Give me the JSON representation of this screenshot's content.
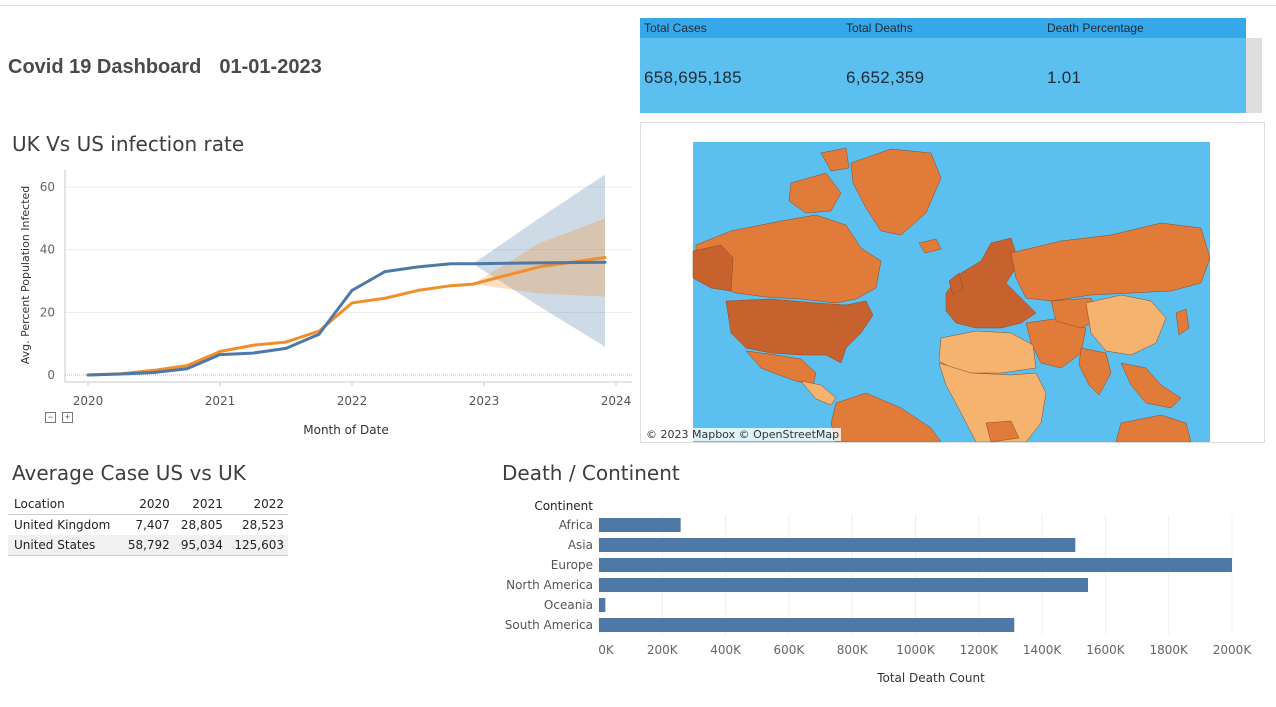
{
  "header": {
    "title": "Covid 19 Dashboard",
    "date": "01-01-2023"
  },
  "kpis": {
    "labels": [
      "Total Cases",
      "Total Deaths",
      "Death Percentage"
    ],
    "values": [
      "658,695,185",
      "6,652,359",
      "1.01"
    ],
    "header_color": "#36a8ea",
    "body_color": "#5bc0f0"
  },
  "infection_chart": {
    "title": "UK Vs US infection rate",
    "zoom_out_symbol": "−",
    "zoom_in_symbol": "+"
  },
  "map": {
    "credit": "© 2023 Mapbox  © OpenStreetMap",
    "ocean_color": "#5bc0ef",
    "land_colors": [
      "#e07b39",
      "#c7622e",
      "#f4b470"
    ]
  },
  "avg_table": {
    "title": "Average Case US vs UK",
    "columns": [
      "Location",
      "2020",
      "2021",
      "2022"
    ],
    "rows": [
      [
        "United Kingdom",
        "7,407",
        "28,805",
        "28,523"
      ],
      [
        "United States",
        "58,792",
        "95,034",
        "125,603"
      ]
    ]
  },
  "death_chart_title": "Death / Continent",
  "chart_data": [
    {
      "type": "line",
      "xlabel": "Month of Date",
      "ylabel": "Avg. Percent Population Infected",
      "x_ticks": [
        "2020",
        "2021",
        "2022",
        "2023",
        "2024"
      ],
      "y_ticks": [
        0,
        20,
        40,
        60
      ],
      "ylim": [
        0,
        60
      ],
      "xlim": [
        "2020-01",
        "2024-01"
      ],
      "grid": true,
      "colors": {
        "uk": "#f28e2b",
        "us": "#4e79a7"
      },
      "x": [
        "2020-01",
        "2020-04",
        "2020-07",
        "2020-10",
        "2021-01",
        "2021-04",
        "2021-07",
        "2021-10",
        "2022-01",
        "2022-04",
        "2022-07",
        "2022-10",
        "2022-12",
        "2023-06",
        "2023-12"
      ],
      "series": [
        {
          "key": "uk",
          "values": [
            0,
            0.4,
            1.5,
            3,
            7.5,
            9.5,
            10.5,
            14,
            23,
            24.5,
            27,
            28.5,
            29,
            34.5,
            37.5
          ]
        },
        {
          "key": "us",
          "values": [
            0,
            0.3,
            0.8,
            2,
            6.5,
            7,
            8.5,
            13,
            27,
            33,
            34.5,
            35.5,
            35.5,
            35.8,
            36
          ]
        }
      ],
      "forecast": {
        "x": [
          "2022-12",
          "2023-06",
          "2023-12"
        ],
        "uk_band": [
          [
            29,
            29
          ],
          [
            26,
            42
          ],
          [
            25,
            50
          ]
        ],
        "us_band": [
          [
            35.5,
            35.5
          ],
          [
            22,
            50
          ],
          [
            9,
            64
          ]
        ]
      }
    },
    {
      "type": "bar",
      "orientation": "horizontal",
      "title": "",
      "category_header": "Continent",
      "xlabel": "Total Death Count",
      "categories": [
        "Africa",
        "Asia",
        "Europe",
        "North America",
        "Oceania",
        "South America"
      ],
      "values": [
        258000,
        1505000,
        2000000,
        1545000,
        20000,
        1312000
      ],
      "xlim": [
        0,
        2000000
      ],
      "x_ticks": [
        "0K",
        "200K",
        "400K",
        "600K",
        "800K",
        "1000K",
        "1200K",
        "1400K",
        "1600K",
        "1800K",
        "2000K"
      ],
      "bar_color": "#4e79a7",
      "grid": true
    }
  ]
}
